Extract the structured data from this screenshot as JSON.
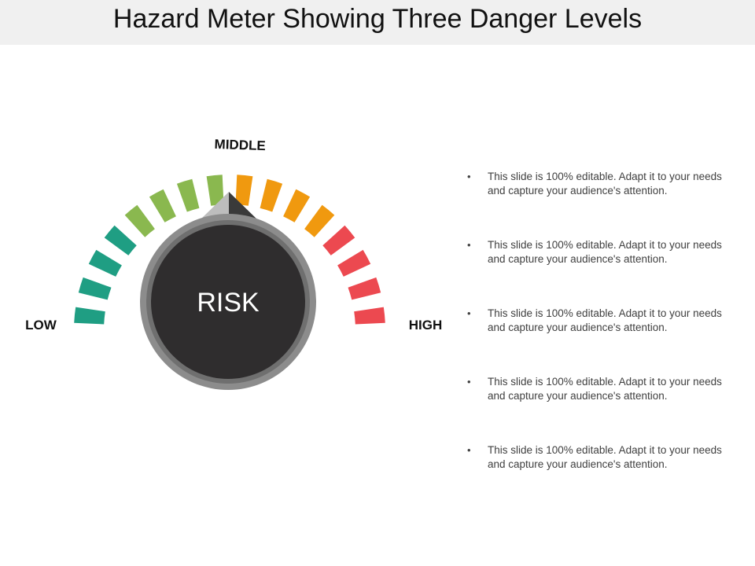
{
  "title": "Hazard Meter Showing Three Danger Levels",
  "gauge": {
    "center_label": "RISK",
    "low_label": "LOW",
    "middle_label": "MIDDLE",
    "high_label": "HIGH",
    "colors": {
      "low": "#1f9e83",
      "middle_low": "#8ab84f",
      "middle_high": "#f0990f",
      "high": "#ec4950",
      "dial": "#2f2d2e",
      "ring": "#8c8c8c",
      "pointer_light": "#bdbdbd",
      "pointer_dark": "#3a3a3a"
    }
  },
  "bullets": [
    "This slide is 100% editable. Adapt it to your needs and capture your audience's attention.",
    "This slide is 100% editable. Adapt it to your needs and capture your audience's attention.",
    "This slide is 100% editable. Adapt it to your needs and capture your audience's attention.",
    "This slide is 100% editable. Adapt it to your needs and capture your audience's attention.",
    "This slide is 100% editable. Adapt it to your needs and capture your audience's attention."
  ]
}
